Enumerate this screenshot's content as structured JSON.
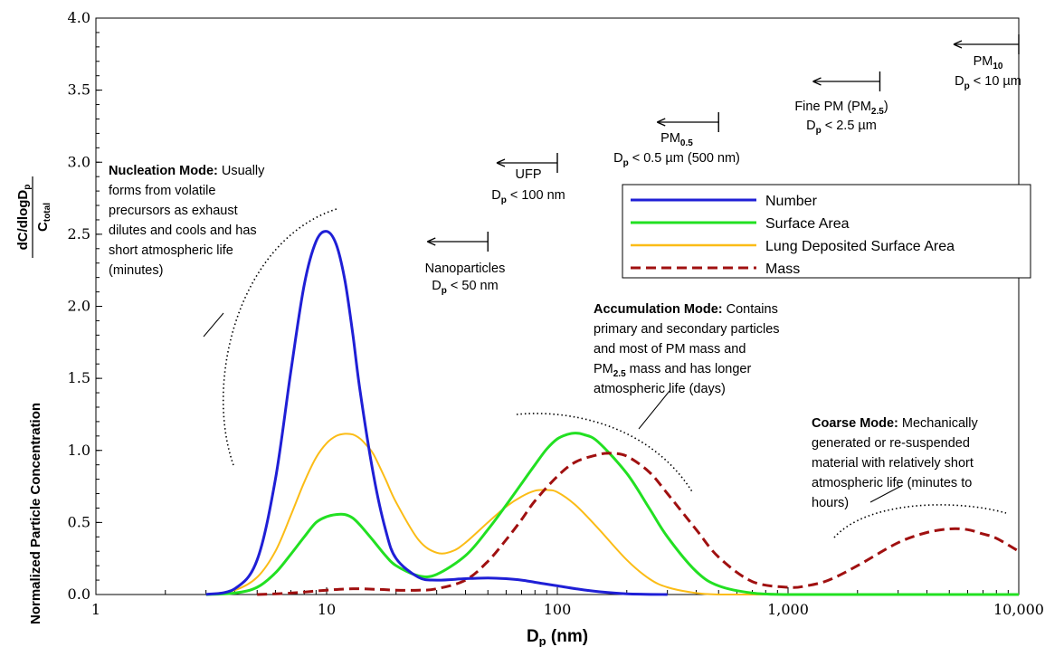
{
  "chart_data": {
    "type": "line",
    "x_scale": "log",
    "xlim": [
      1,
      10000
    ],
    "ylim": [
      0,
      4.0
    ],
    "xlabel": "D",
    "xlabel_sub": "p",
    "xlabel_suffix": " (nm)",
    "ylabel": "Normalized Particle Concentration",
    "ylabel_fraction": {
      "numerator": "dC/dlogD",
      "numerator_sub": "p",
      "denominator": "C",
      "denominator_sub": "total"
    },
    "x_ticks": [
      1,
      10,
      100,
      1000,
      10000
    ],
    "x_tick_labels": [
      "1",
      "10",
      "100",
      "1,000",
      "10,000"
    ],
    "y_ticks": [
      0,
      0.5,
      1,
      1.5,
      2,
      2.5,
      3,
      3.5,
      4
    ],
    "y_tick_labels": [
      "0.0",
      "0.5",
      "1.0",
      "1.5",
      "2.0",
      "2.5",
      "3.0",
      "3.5",
      "4.0"
    ],
    "grid": false,
    "legend_position": "center-right",
    "series": [
      {
        "name": "Number",
        "color": "#1f1fd6",
        "style": "solid",
        "x": [
          3,
          4,
          5,
          6,
          7,
          8,
          9,
          10,
          11,
          12,
          13,
          14,
          16,
          18,
          20,
          25,
          30,
          40,
          50,
          60,
          70,
          80,
          100,
          120,
          150,
          200,
          300
        ],
        "y": [
          0.0,
          0.04,
          0.24,
          0.8,
          1.55,
          2.15,
          2.45,
          2.52,
          2.43,
          2.18,
          1.8,
          1.4,
          0.82,
          0.45,
          0.25,
          0.12,
          0.1,
          0.11,
          0.115,
          0.11,
          0.1,
          0.085,
          0.06,
          0.04,
          0.02,
          0.005,
          0.0
        ]
      },
      {
        "name": "Surface Area",
        "color": "#22e022",
        "style": "solid",
        "x": [
          3,
          4,
          5,
          6,
          7,
          8,
          9,
          10,
          11,
          12,
          13,
          14,
          16,
          18,
          20,
          25,
          30,
          40,
          50,
          60,
          70,
          80,
          90,
          100,
          110,
          120,
          130,
          150,
          200,
          250,
          300,
          400,
          500,
          700,
          1000,
          2000,
          10000
        ],
        "y": [
          0.0,
          0.01,
          0.05,
          0.15,
          0.28,
          0.4,
          0.5,
          0.54,
          0.555,
          0.555,
          0.53,
          0.48,
          0.37,
          0.27,
          0.2,
          0.13,
          0.14,
          0.27,
          0.45,
          0.62,
          0.77,
          0.9,
          1.01,
          1.08,
          1.11,
          1.12,
          1.11,
          1.06,
          0.84,
          0.6,
          0.4,
          0.16,
          0.06,
          0.01,
          0.0,
          0.0,
          0.0
        ]
      },
      {
        "name": "Lung Deposited Surface Area",
        "color": "#fbbc16",
        "style": "solid",
        "x": [
          3,
          4,
          5,
          6,
          7,
          8,
          9,
          10,
          11,
          12,
          13,
          14,
          15,
          16,
          18,
          20,
          25,
          30,
          35,
          40,
          50,
          60,
          70,
          80,
          90,
          100,
          120,
          150,
          200,
          250,
          300,
          400,
          500,
          700,
          1000
        ],
        "y": [
          0.0,
          0.03,
          0.12,
          0.3,
          0.55,
          0.78,
          0.95,
          1.05,
          1.1,
          1.115,
          1.11,
          1.08,
          1.03,
          0.97,
          0.8,
          0.64,
          0.38,
          0.29,
          0.3,
          0.36,
          0.5,
          0.61,
          0.68,
          0.72,
          0.725,
          0.71,
          0.62,
          0.46,
          0.24,
          0.11,
          0.05,
          0.01,
          0.0,
          0.0,
          0.0
        ]
      },
      {
        "name": "Mass",
        "color": "#a01010",
        "style": "dashed",
        "x": [
          5,
          7,
          10,
          13,
          17,
          20,
          25,
          30,
          40,
          50,
          60,
          70,
          80,
          100,
          120,
          150,
          170,
          200,
          250,
          300,
          400,
          500,
          700,
          1000,
          1200,
          1500,
          2000,
          3000,
          4000,
          5000,
          6000,
          7000,
          8000,
          10000
        ],
        "y": [
          0.0,
          0.01,
          0.03,
          0.04,
          0.035,
          0.03,
          0.03,
          0.04,
          0.1,
          0.23,
          0.38,
          0.52,
          0.65,
          0.82,
          0.92,
          0.97,
          0.98,
          0.96,
          0.85,
          0.7,
          0.45,
          0.26,
          0.09,
          0.05,
          0.06,
          0.1,
          0.2,
          0.36,
          0.43,
          0.455,
          0.45,
          0.42,
          0.39,
          0.3
        ]
      }
    ],
    "size_ranges": [
      {
        "label": "Nanoparticles",
        "sub": "",
        "line2": "D",
        "line2_sub": "p",
        "line2_rest": " < 50 nm",
        "upper": 50
      },
      {
        "label": "UFP",
        "sub": "",
        "line2": "D",
        "line2_sub": "p",
        "line2_rest": " < 100 nm",
        "upper": 100
      },
      {
        "label": "PM",
        "sub": "0.5",
        "line2": "D",
        "line2_sub": "p",
        "line2_rest": " < 0.5 µm (500 nm)",
        "upper": 500
      },
      {
        "label": "Fine PM (PM",
        "sub": "2.5",
        "label_end": ")",
        "line2": "D",
        "line2_sub": "p",
        "line2_rest": " < 2.5 µm",
        "upper": 2500
      },
      {
        "label": "PM",
        "sub": "10",
        "line2": "D",
        "line2_sub": "p",
        "line2_rest": " < 10 µm",
        "upper": 10000
      }
    ],
    "annotations": {
      "nucleation": {
        "title": "Nucleation Mode:",
        "lines": [
          "Usually",
          "forms from volatile",
          "precursors as exhaust",
          "dilutes and cools and has",
          "short atmospheric life",
          "(minutes)"
        ]
      },
      "accumulation": {
        "title": "Accumulation Mode:",
        "lines": [
          "Contains",
          "primary and secondary particles",
          "and most of PM mass and",
          "PM",
          "2.5",
          " mass and has longer",
          "atmospheric life (days)"
        ]
      },
      "coarse": {
        "title": "Coarse Mode:",
        "lines": [
          "Mechanically",
          "generated or re-suspended",
          "material with relatively short",
          "atmospheric life (minutes to",
          "hours)"
        ]
      }
    }
  }
}
